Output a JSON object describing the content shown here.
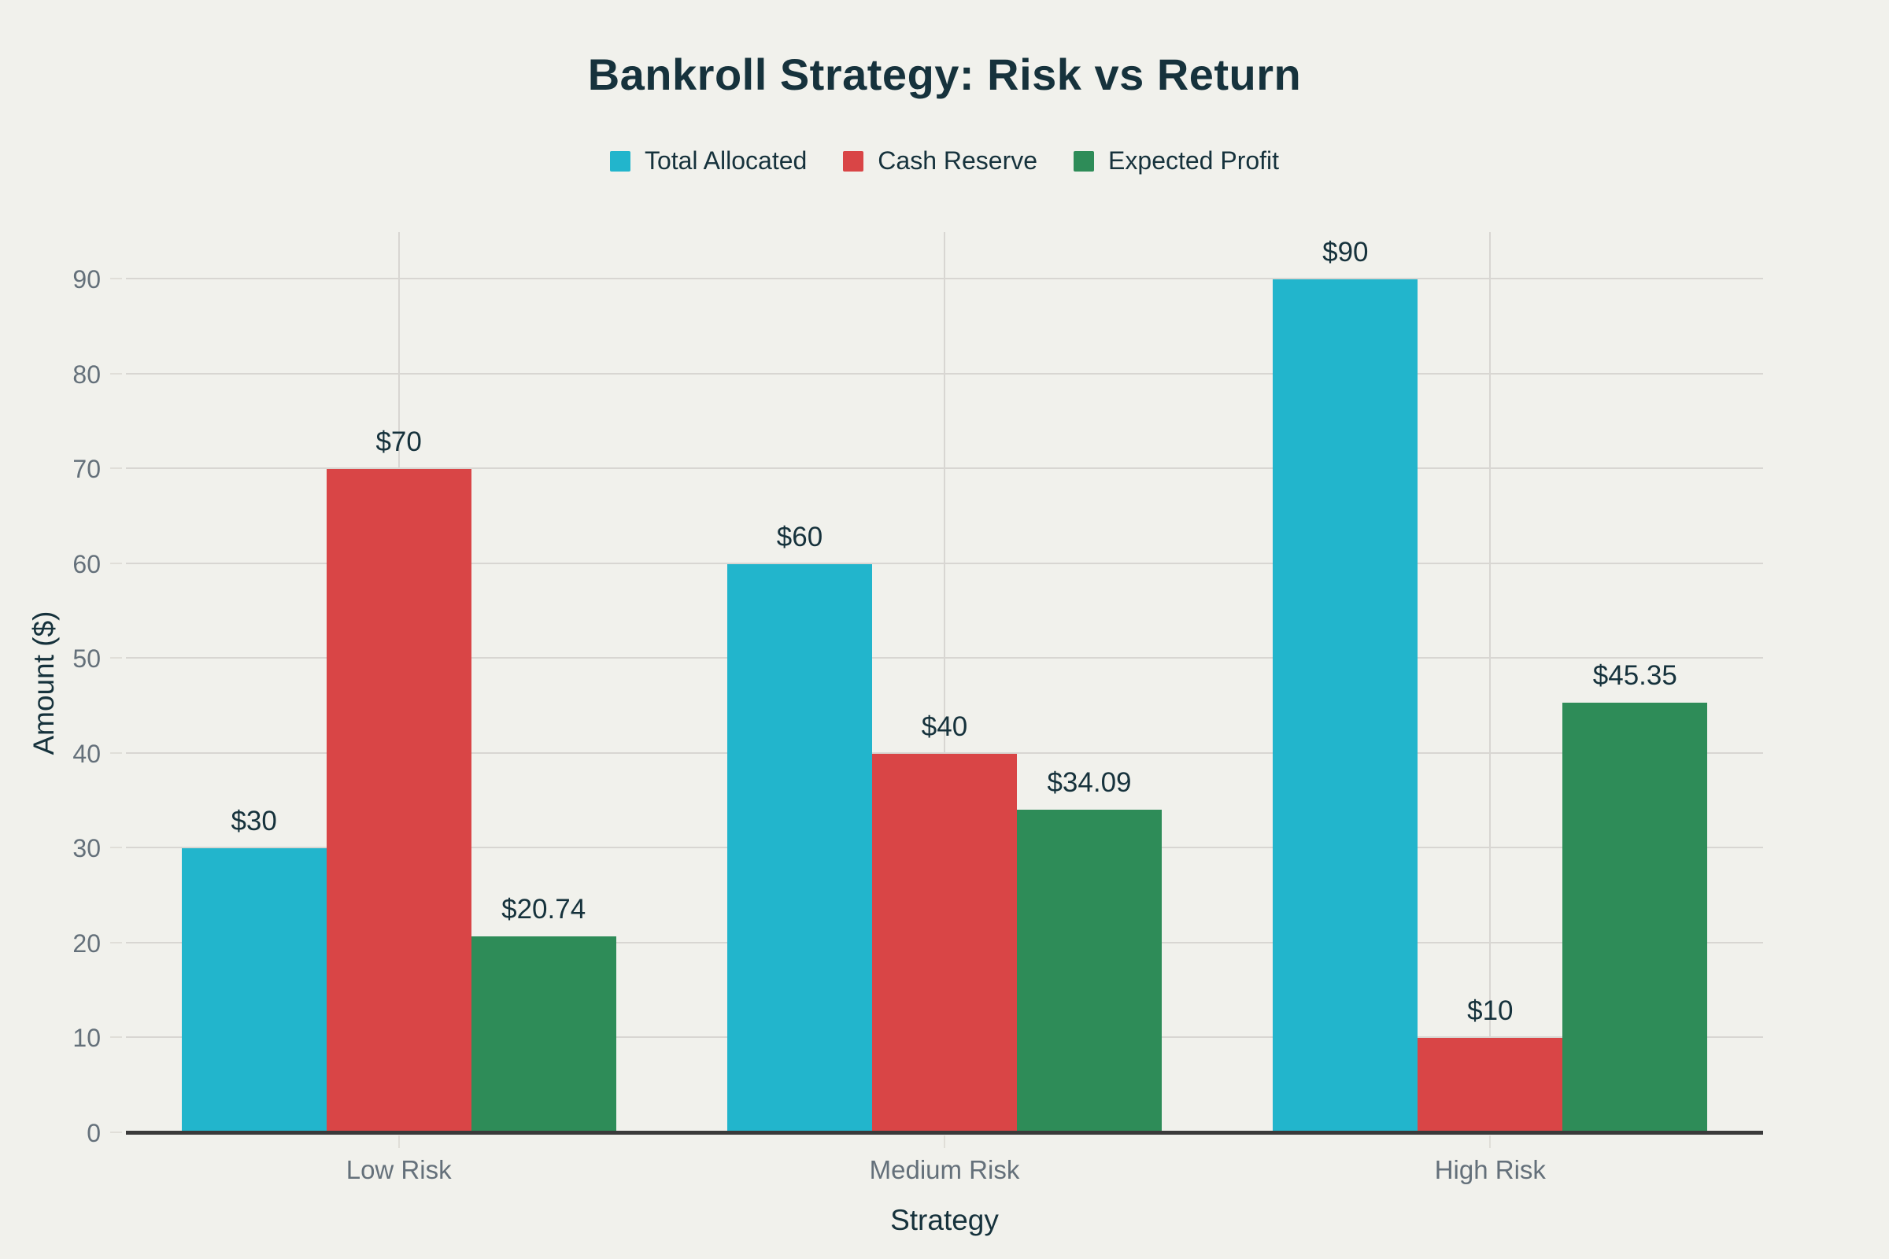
{
  "chart_data": {
    "type": "bar",
    "title": "Bankroll Strategy: Risk vs Return",
    "xlabel": "Strategy",
    "ylabel": "Amount ($)",
    "categories": [
      "Low Risk",
      "Medium Risk",
      "High Risk"
    ],
    "series": [
      {
        "name": "Total Allocated",
        "color": "#22B5CC",
        "values": [
          30,
          60,
          90
        ],
        "labels": [
          "$30",
          "$60",
          "$90"
        ]
      },
      {
        "name": "Cash Reserve",
        "color": "#D94546",
        "values": [
          70,
          40,
          10
        ],
        "labels": [
          "$70",
          "$40",
          "$10"
        ]
      },
      {
        "name": "Expected Profit",
        "color": "#2E8C58",
        "values": [
          20.74,
          34.09,
          45.35
        ],
        "labels": [
          "$20.74",
          "$34.09",
          "$45.35"
        ]
      }
    ],
    "ylim": [
      0,
      95
    ],
    "yticks": [
      0,
      10,
      20,
      30,
      40,
      50,
      60,
      70,
      80,
      90
    ],
    "ytick_labels": [
      "0",
      "10",
      "20",
      "30",
      "40",
      "50",
      "60",
      "70",
      "80",
      "90"
    ],
    "grid": true,
    "legend_position": "top"
  },
  "colors": {
    "background": "#F1F1EC",
    "text_dark": "#16323C",
    "text_gray": "#64707A",
    "gridline": "#D8D6D2",
    "gridline_light": "#E0DED8",
    "axis_line": "#3A3A3A"
  }
}
